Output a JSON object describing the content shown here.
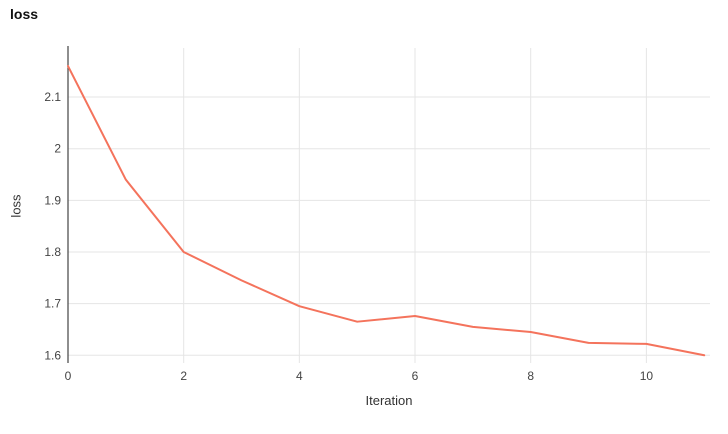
{
  "header": {
    "title": "loss"
  },
  "chart_data": {
    "type": "line",
    "title": "loss",
    "xlabel": "Iteration",
    "ylabel": "loss",
    "x": [
      0,
      1,
      2,
      3,
      4,
      5,
      6,
      7,
      8,
      9,
      10,
      11
    ],
    "series": [
      {
        "name": "loss",
        "values": [
          2.16,
          1.94,
          1.8,
          1.745,
          1.695,
          1.665,
          1.676,
          1.655,
          1.645,
          1.624,
          1.622,
          1.6
        ],
        "color": "#f4735c"
      }
    ],
    "x_ticks": [
      0,
      2,
      4,
      6,
      8,
      10
    ],
    "y_ticks": [
      1.6,
      1.7,
      1.8,
      1.9,
      2,
      2.1
    ],
    "xlim": [
      0,
      11.1
    ],
    "ylim": [
      1.585,
      2.195
    ],
    "grid": true,
    "legend": "none",
    "grid_color": "#e5e5e5",
    "axis_color": "#444444",
    "tick_label_color": "#444444",
    "background": "#ffffff"
  }
}
